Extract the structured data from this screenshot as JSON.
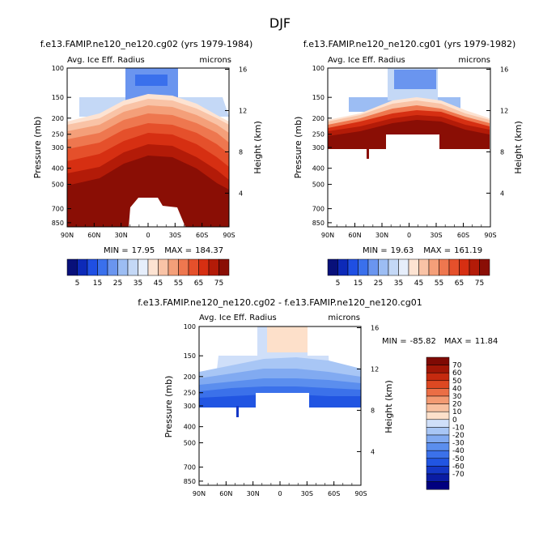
{
  "figure_title": "DJF",
  "colors": {
    "cb1": [
      "#08107a",
      "#0d2ab8",
      "#1f4fe3",
      "#3a70ec",
      "#6a95ef",
      "#9cbdf3",
      "#c4d8f6",
      "#e6eefb",
      "#fde3d2",
      "#f9c3a6",
      "#f49f79",
      "#ee774f",
      "#e5502b",
      "#d62f12",
      "#b31b08",
      "#8a0e05"
    ],
    "cb2": [
      "#00007f",
      "#0a1ca4",
      "#1437c6",
      "#2155e2",
      "#3b71ea",
      "#5b8eee",
      "#81aaf1",
      "#a8c6f5",
      "#cfdff9",
      "#fde0ca",
      "#f8c0a0",
      "#f39a72",
      "#eb6e45",
      "#dd4822",
      "#c52a0f",
      "#a11606",
      "#7f0a04"
    ],
    "missing": "#ffffff"
  },
  "chart_data": [
    {
      "id": "panel1",
      "type": "contour",
      "title": "f.e13.FAMIP.ne120_ne120.cg02 (yrs 1979-1984)",
      "left_label": "Avg. Ice Eff. Radius",
      "right_label": "microns",
      "ylabel": "Pressure (mb)",
      "y2label": "Height (km)",
      "x_ticks": [
        "90N",
        "60N",
        "30N",
        "0",
        "30S",
        "60S",
        "90S"
      ],
      "x_values": [
        90,
        60,
        30,
        0,
        -30,
        -60,
        -90
      ],
      "p_ticks": [
        "100",
        "150",
        "200",
        "250",
        "300",
        "400",
        "500",
        "700",
        "850"
      ],
      "p_values": [
        100,
        150,
        200,
        250,
        300,
        400,
        500,
        700,
        850
      ],
      "ylim": [
        100,
        900
      ],
      "height_ticks": [
        "4",
        "8",
        "12",
        "16"
      ],
      "height_values": [
        4,
        8,
        12,
        16
      ],
      "stats": {
        "min_label": "MIN =",
        "min": "17.95",
        "max_label": "MAX =",
        "max": "184.37"
      },
      "colorbar": {
        "labels": [
          "5",
          "15",
          "25",
          "35",
          "45",
          "55",
          "65",
          "75"
        ]
      },
      "description": "ice effective radius increases downward; tropical top ~12 microns at 100-150 mb; values >80 below ~300 mb; missing below ~600 mb between 30N and 30S"
    },
    {
      "id": "panel2",
      "type": "contour",
      "title": "f.e13.FAMIP.ne120_ne120.cg01 (yrs 1979-1982)",
      "left_label": "Avg. Ice Eff. Radius",
      "right_label": "microns",
      "ylabel": "Pressure (mb)",
      "y2label": "Height (km)",
      "x_ticks": [
        "90N",
        "60N",
        "30N",
        "0",
        "30S",
        "60S",
        "90S"
      ],
      "x_values": [
        90,
        60,
        30,
        0,
        -30,
        -60,
        -90
      ],
      "p_ticks": [
        "100",
        "150",
        "200",
        "250",
        "300",
        "400",
        "500",
        "700",
        "850"
      ],
      "p_values": [
        100,
        150,
        200,
        250,
        300,
        400,
        500,
        700,
        850
      ],
      "ylim": [
        100,
        900
      ],
      "height_ticks": [
        "4",
        "8",
        "12",
        "16"
      ],
      "height_values": [
        4,
        8,
        12,
        16
      ],
      "stats": {
        "min_label": "MIN =",
        "min": "19.63",
        "max_label": "MAX =",
        "max": "161.19"
      },
      "colorbar": {
        "labels": [
          "5",
          "15",
          "25",
          "35",
          "45",
          "55",
          "65",
          "75"
        ]
      },
      "description": "ice effective radius field limited to above ~300 mb; sharp increase between 150 and 250 mb"
    },
    {
      "id": "panel3",
      "type": "contour",
      "title": "f.e13.FAMIP.ne120_ne120.cg02 - f.e13.FAMIP.ne120_ne120.cg01",
      "left_label": "Avg. Ice Eff. Radius",
      "right_label": "microns",
      "ylabel": "Pressure (mb)",
      "y2label": "Height (km)",
      "x_ticks": [
        "90N",
        "60N",
        "30N",
        "0",
        "30S",
        "60S",
        "90S"
      ],
      "x_values": [
        90,
        60,
        30,
        0,
        -30,
        -60,
        -90
      ],
      "p_ticks": [
        "100",
        "150",
        "200",
        "250",
        "300",
        "400",
        "500",
        "700",
        "850"
      ],
      "p_values": [
        100,
        150,
        200,
        250,
        300,
        400,
        500,
        700,
        850
      ],
      "ylim": [
        100,
        900
      ],
      "height_ticks": [
        "4",
        "8",
        "12",
        "16"
      ],
      "height_values": [
        4,
        8,
        12,
        16
      ],
      "stats": {
        "min_label": "MIN =",
        "min": "-85.82",
        "max_label": "MAX =",
        "max": "11.84"
      },
      "colorbar": {
        "labels": [
          "70",
          "60",
          "50",
          "40",
          "30",
          "20",
          "10",
          "0",
          "-10",
          "-20",
          "-30",
          "-40",
          "-50",
          "-60",
          "-70"
        ]
      },
      "description": "difference field mostly negative (blue), increasingly negative toward 300 mb; slight positive over tropics near 100-150 mb"
    }
  ]
}
